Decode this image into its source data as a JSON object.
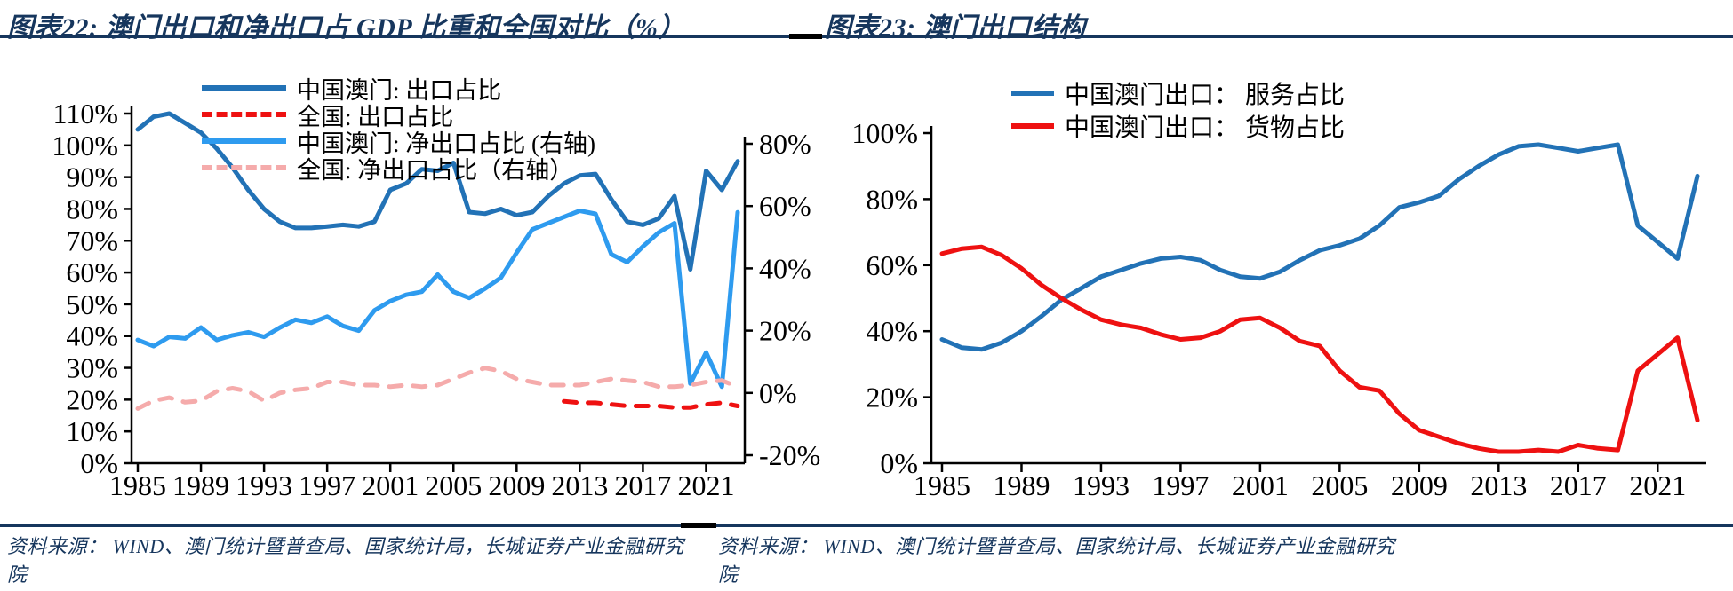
{
  "header": {
    "left_title": "图表22:  澳门出口和净出口占 GDP 比重和全国对比（%）",
    "right_title": "图表23:  澳门出口结构"
  },
  "footer": {
    "left_source": "资料来源：  WIND、澳门统计暨普查局、国家统计局，长城证券产业金融研究院",
    "right_source": "资料来源：  WIND、澳门统计暨普查局、国家统计局、长城证券产业金融研究院"
  },
  "colors": {
    "title_navy": "#16365D",
    "macau_dark_blue": "#2272B6",
    "macau_light_blue": "#2E9BEF",
    "national_red": "#EE1111",
    "national_pink": "#F5ABAB",
    "axis_black": "#000000"
  },
  "chart_data": [
    {
      "type": "line",
      "title": "图表22: 澳门出口和净出口占 GDP 比重和全国对比（%）",
      "years": [
        1985,
        1986,
        1987,
        1988,
        1989,
        1990,
        1991,
        1992,
        1993,
        1994,
        1995,
        1996,
        1997,
        1998,
        1999,
        2000,
        2001,
        2002,
        2003,
        2004,
        2005,
        2006,
        2007,
        2008,
        2009,
        2010,
        2011,
        2012,
        2013,
        2014,
        2015,
        2016,
        2017,
        2018,
        2019,
        2020,
        2021,
        2022,
        2023
      ],
      "x_ticks": [
        1985,
        1989,
        1993,
        1997,
        2001,
        2005,
        2009,
        2013,
        2017,
        2021
      ],
      "x_tick_labels": [
        "1985",
        "1989",
        "1993",
        "1997",
        "2001",
        "2005",
        "2009",
        "2013",
        "2017",
        "2021"
      ],
      "left_axis": {
        "min": 0,
        "max": 110,
        "ticks": [
          110,
          100,
          90,
          80,
          70,
          60,
          50,
          40,
          30,
          20,
          10,
          0
        ],
        "tick_labels": [
          "110%",
          "100%",
          "90%",
          "80%",
          "70%",
          "60%",
          "50%",
          "40%",
          "30%",
          "20%",
          "10%",
          "0%"
        ]
      },
      "right_axis": {
        "min": -20,
        "max": 80,
        "ticks": [
          80,
          60,
          40,
          20,
          0,
          -20
        ],
        "tick_labels": [
          "80%",
          "60%",
          "40%",
          "20%",
          "0%",
          "-20%"
        ]
      },
      "legend_position": "top-left-inside",
      "grid": false,
      "series": [
        {
          "name": "中国澳门: 出口占比",
          "axis": "left",
          "color": "#2272B6",
          "dash": false,
          "values": [
            105,
            109,
            110,
            107,
            104,
            99,
            93,
            86,
            80,
            76,
            74,
            74,
            74.5,
            75,
            74.5,
            76,
            86,
            88,
            92.5,
            92,
            94.5,
            79,
            78.5,
            80,
            78,
            79,
            84,
            88,
            90.5,
            91,
            83,
            76,
            75,
            77,
            84,
            61,
            92,
            86,
            95
          ]
        },
        {
          "name": "全国: 出口占比",
          "axis": "left",
          "color": "#EE1111",
          "dash": true,
          "values": [
            null,
            null,
            null,
            null,
            null,
            null,
            null,
            null,
            null,
            null,
            null,
            null,
            null,
            null,
            null,
            null,
            null,
            null,
            null,
            null,
            null,
            null,
            null,
            null,
            null,
            null,
            null,
            19.5,
            19,
            19,
            18.5,
            18,
            18,
            18,
            17.5,
            17.5,
            18.5,
            19,
            18
          ]
        },
        {
          "name": "中国澳门: 净出口占比 (右轴)",
          "axis": "right",
          "color": "#2E9BEF",
          "dash": false,
          "values": [
            17,
            15,
            18,
            17.5,
            21,
            17,
            18.5,
            19.5,
            18,
            21,
            23.5,
            22.5,
            24.5,
            21.5,
            20,
            26.5,
            29.5,
            31.5,
            32.5,
            38,
            32.5,
            30.5,
            33.5,
            37,
            45,
            52.5,
            54.5,
            56.5,
            58.5,
            57.5,
            44.5,
            42,
            47,
            51.5,
            54.5,
            3,
            13,
            2,
            58
          ]
        },
        {
          "name": "全国: 净出口占比（右轴）",
          "axis": "right",
          "color": "#F5ABAB",
          "dash": true,
          "values": [
            -5,
            -2.5,
            -1.5,
            -3,
            -2.5,
            0.5,
            1.5,
            0.5,
            -2.5,
            0,
            1,
            1.5,
            3.5,
            3.5,
            2.5,
            2.5,
            2,
            2.5,
            2,
            2.5,
            4.5,
            6.5,
            8,
            7,
            4.5,
            3.5,
            2.5,
            2.5,
            2.5,
            3.5,
            4.5,
            4,
            3.5,
            2,
            2,
            2.5,
            3.5,
            4,
            2
          ]
        }
      ]
    },
    {
      "type": "line",
      "title": "图表23: 澳门出口结构",
      "years": [
        1985,
        1986,
        1987,
        1988,
        1989,
        1990,
        1991,
        1992,
        1993,
        1994,
        1995,
        1996,
        1997,
        1998,
        1999,
        2000,
        2001,
        2002,
        2003,
        2004,
        2005,
        2006,
        2007,
        2008,
        2009,
        2010,
        2011,
        2012,
        2013,
        2014,
        2015,
        2016,
        2017,
        2018,
        2019,
        2020,
        2021,
        2022,
        2023
      ],
      "x_ticks": [
        1985,
        1989,
        1993,
        1997,
        2001,
        2005,
        2009,
        2013,
        2017,
        2021
      ],
      "x_tick_labels": [
        "1985",
        "1989",
        "1993",
        "1997",
        "2001",
        "2005",
        "2009",
        "2013",
        "2017",
        "2021"
      ],
      "left_axis": {
        "min": 0,
        "max": 100,
        "ticks": [
          100,
          80,
          60,
          40,
          20,
          0
        ],
        "tick_labels": [
          "100%",
          "80%",
          "60%",
          "40%",
          "20%",
          "0%"
        ]
      },
      "right_axis": null,
      "legend_position": "top-center-inside",
      "grid": false,
      "series": [
        {
          "name": "中国澳门出口： 服务占比",
          "axis": "left",
          "color": "#2272B6",
          "dash": false,
          "values": [
            37.5,
            35,
            34.5,
            36.5,
            40,
            44.5,
            49.5,
            53,
            56.5,
            58.5,
            60.5,
            62,
            62.5,
            61.5,
            58.5,
            56.5,
            56,
            58,
            61.5,
            64.5,
            66,
            68,
            72,
            77.5,
            79,
            81,
            86,
            90,
            93.5,
            96,
            96.5,
            95.5,
            94.5,
            95.5,
            96.5,
            72,
            67,
            62,
            87
          ]
        },
        {
          "name": "中国澳门出口： 货物占比",
          "axis": "left",
          "color": "#EE1111",
          "dash": false,
          "values": [
            63.5,
            65,
            65.5,
            63,
            59,
            54,
            50,
            46.5,
            43.5,
            42,
            41,
            39,
            37.5,
            38,
            40,
            43.5,
            44,
            41,
            37,
            35.5,
            28,
            23,
            22,
            15,
            10,
            8,
            6,
            4.5,
            3.5,
            3.5,
            4,
            3.5,
            5.5,
            4.5,
            4,
            28,
            33,
            38,
            13
          ]
        }
      ]
    }
  ]
}
